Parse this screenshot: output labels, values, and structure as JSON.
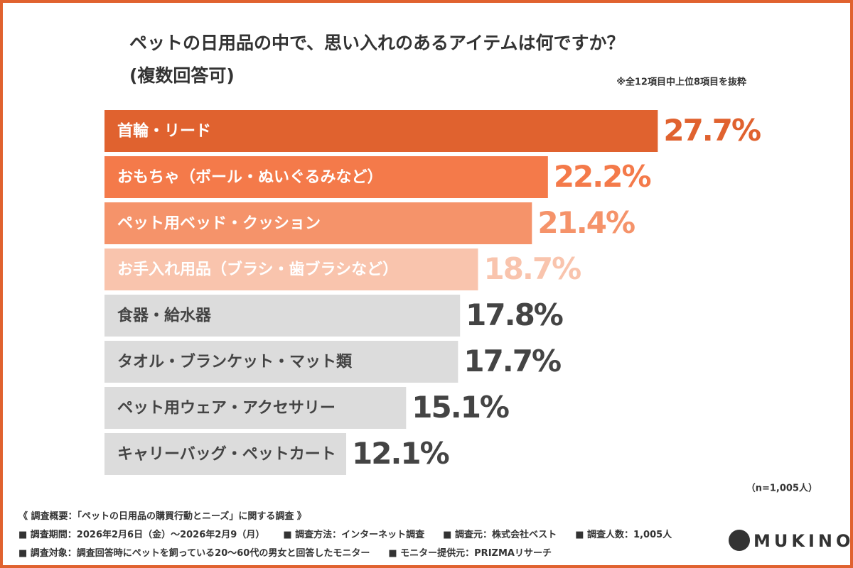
{
  "chart_data": {
    "type": "bar",
    "orientation": "horizontal",
    "title": "ペットの日用品の中で、思い入れのあるアイテムは何ですか？",
    "subtitle": "(複数回答可)",
    "note": "※全12項目中上位8項目を抜粋",
    "categories": [
      "首輪・リード",
      "おもちゃ（ボール・ぬいぐるみなど）",
      "ペット用ベッド・クッション",
      "お手入れ用品（ブラシ・歯ブラシなど）",
      "食器・給水器",
      "タオル・ブランケット・マット類",
      "ペット用ウェア・アクセサリー",
      "キャリーバッグ・ペットカート"
    ],
    "values": [
      27.7,
      22.2,
      21.4,
      18.7,
      17.8,
      17.7,
      15.1,
      12.1
    ],
    "value_labels": [
      "27.7%",
      "22.2%",
      "21.4%",
      "18.7%",
      "17.8%",
      "17.7%",
      "15.1%",
      "12.1%"
    ],
    "colors": [
      "#e0622f",
      "#f47a4a",
      "#f5936a",
      "#f9c4ad",
      "#dcdcdc",
      "#dcdcdc",
      "#dcdcdc",
      "#dcdcdc"
    ],
    "sample_size": "（n=1,005人）"
  },
  "footer": {
    "heading": "《 調査概要：「ペットの日用品の購買行動とニーズ」に関する調査 》",
    "rows": [
      [
        "■ 調査期間：2026年2月6日（金）〜2026年2月9（月）",
        "■ 調査方法：インターネット調査",
        "■ 調査元：株式会社ベスト",
        "■ 調査人数：1,005人"
      ],
      [
        "■ 調査対象：調査回答時にペットを飼っている20〜60代の男女と回答したモニター",
        "■ モニター提供元：PRIZMAリサーチ"
      ]
    ]
  },
  "logo": "MUKINO"
}
